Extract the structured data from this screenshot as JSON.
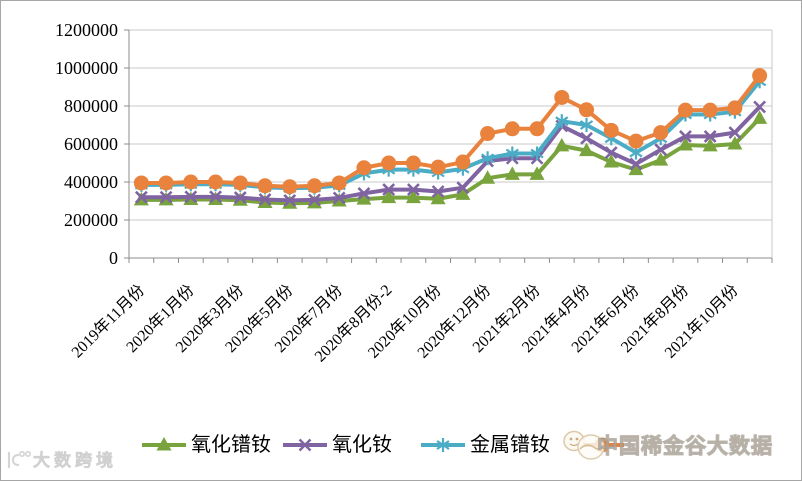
{
  "chart_data": {
    "type": "line",
    "title": "",
    "grid": true,
    "legend_position": "bottom",
    "y_axis": {
      "min": 0,
      "max": 1200000,
      "step": 200000,
      "tick_labels": [
        "0",
        "200000",
        "400000",
        "600000",
        "800000",
        "1000000",
        "1200000"
      ]
    },
    "x_axis": {
      "n_points": 26,
      "label_every": 2,
      "tick_labels": [
        "2019年11月份",
        "2020年1月份",
        "2020年3月份",
        "2020年5月份",
        "2020年7月份",
        "2020年8月份-2",
        "2020年10月份",
        "2020年12月份",
        "2021年2月份",
        "2021年4月份",
        "2021年6月份",
        "2021年8月份",
        "2021年10月份"
      ]
    },
    "series": [
      {
        "name": "氧化镨钕",
        "color": "#78A33D",
        "marker": "triangle",
        "values": [
          306000,
          306000,
          308000,
          308000,
          304000,
          292000,
          288000,
          290000,
          300000,
          310000,
          318000,
          318000,
          312000,
          335000,
          420000,
          440000,
          440000,
          590000,
          565000,
          505000,
          465000,
          515000,
          595000,
          590000,
          600000,
          735000
        ]
      },
      {
        "name": "氧化钕",
        "color": "#8064A2",
        "marker": "x",
        "values": [
          320000,
          320000,
          322000,
          322000,
          318000,
          308000,
          303000,
          306000,
          316000,
          340000,
          360000,
          360000,
          350000,
          370000,
          510000,
          525000,
          525000,
          695000,
          630000,
          555000,
          495000,
          570000,
          640000,
          640000,
          660000,
          795000
        ]
      },
      {
        "name": "金属镨钕",
        "color": "#4BACC6",
        "marker": "asterisk",
        "values": [
          385000,
          385000,
          388000,
          388000,
          385000,
          372000,
          368000,
          370000,
          382000,
          445000,
          465000,
          465000,
          450000,
          470000,
          525000,
          550000,
          550000,
          720000,
          700000,
          630000,
          555000,
          630000,
          755000,
          755000,
          770000,
          930000
        ]
      },
      {
        "name": "",
        "label_obscured_by_watermark": true,
        "color": "#E8823C",
        "marker": "circle",
        "values": [
          395000,
          395000,
          400000,
          400000,
          395000,
          380000,
          375000,
          380000,
          395000,
          475000,
          500000,
          500000,
          478000,
          505000,
          655000,
          680000,
          680000,
          845000,
          780000,
          672000,
          615000,
          660000,
          778000,
          778000,
          790000,
          960000
        ]
      }
    ]
  },
  "legend": {
    "items": [
      {
        "label": "氧化镨钕"
      },
      {
        "label": "氧化钕"
      },
      {
        "label": "金属镨钕"
      },
      {
        "label": ""
      }
    ]
  },
  "watermarks": {
    "legend_overlay": "中国稀金谷大数据",
    "bottom_left": "大数跨境"
  }
}
